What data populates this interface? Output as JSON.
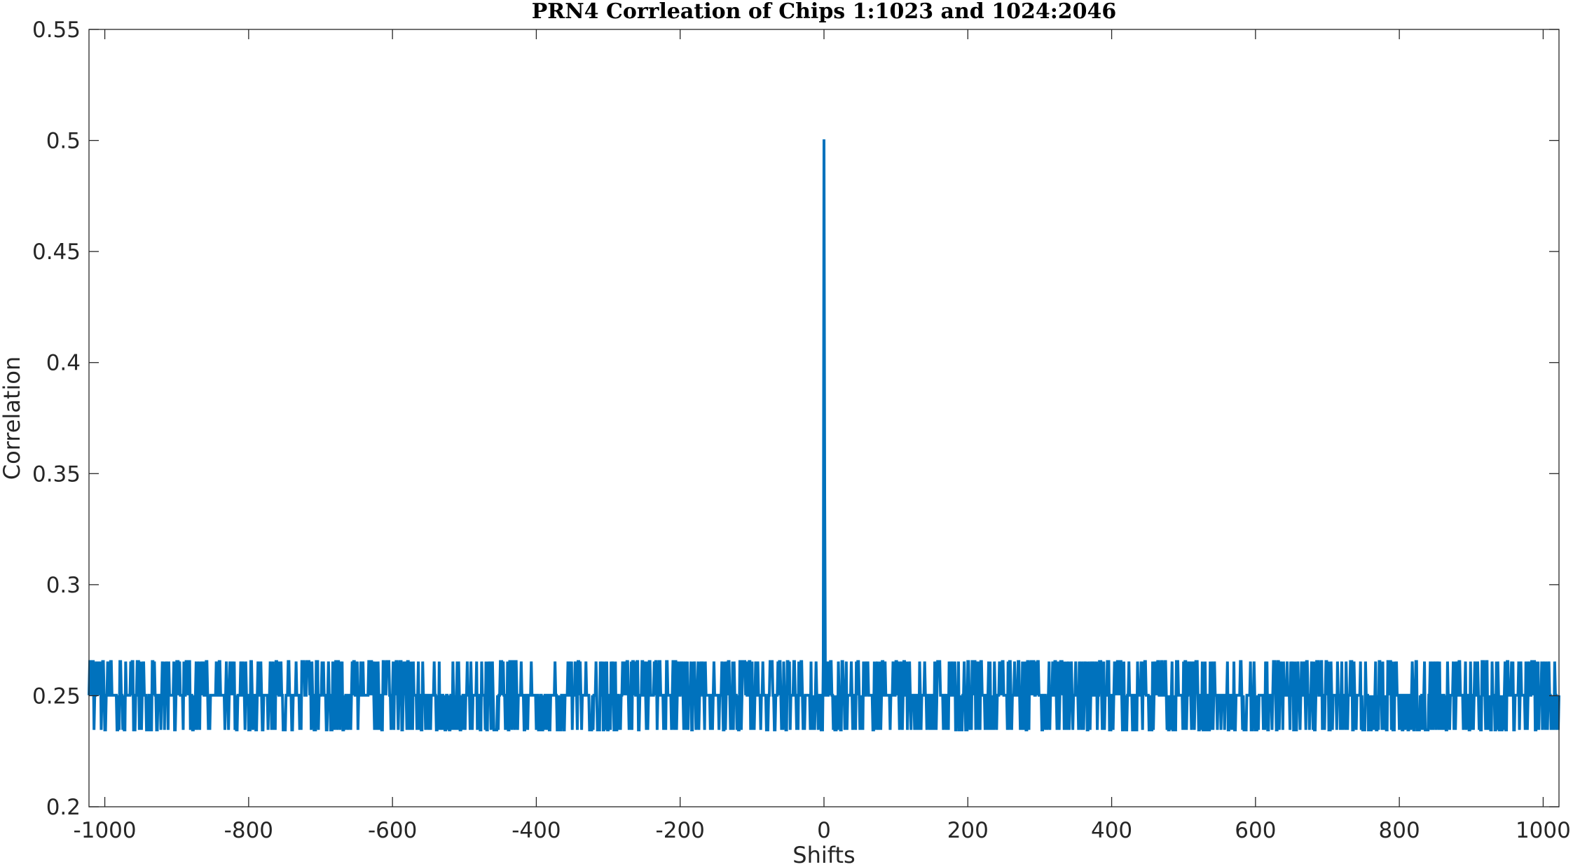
{
  "chart_data": {
    "type": "line",
    "title": "PRN4 Corrleation of Chips 1:1023 and 1024:2046",
    "xlabel": "Shifts",
    "ylabel": "Correlation",
    "xlim": [
      -1022,
      1022
    ],
    "ylim": [
      0.2,
      0.55
    ],
    "xticks": [
      -1000,
      -800,
      -600,
      -400,
      -200,
      0,
      200,
      400,
      600,
      800,
      1000
    ],
    "yticks": [
      0.2,
      0.25,
      0.3,
      0.35,
      0.4,
      0.45,
      0.5,
      0.55
    ],
    "xtick_labels": [
      "-1000",
      "-800",
      "-600",
      "-400",
      "-200",
      "0",
      "200",
      "400",
      "600",
      "800",
      "1000"
    ],
    "ytick_labels": [
      "0.2",
      "0.25",
      "0.3",
      "0.35",
      "0.4",
      "0.45",
      "0.5",
      "0.55"
    ],
    "grid": false,
    "series": [
      {
        "color": "#0072BD",
        "baseline": 0.2502,
        "high": 0.2654,
        "low": 0.2346,
        "peak": {
          "x": 0,
          "y": 0.5005
        },
        "secondary_peak": {
          "x": 1,
          "y": 0.339
        }
      }
    ]
  }
}
